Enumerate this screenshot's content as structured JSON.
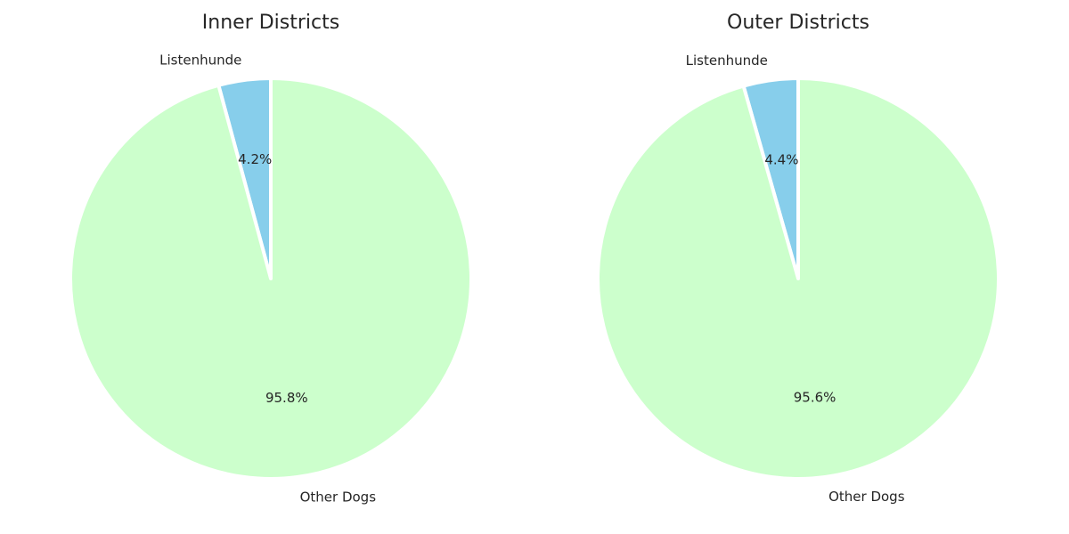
{
  "chart_data": [
    {
      "type": "pie",
      "title": "Inner Districts",
      "labels": [
        "Listenhunde",
        "Other Dogs"
      ],
      "values": [
        4.2,
        95.8
      ],
      "percent_labels": [
        "4.2%",
        "95.8%"
      ],
      "colors": [
        "#87ceeb",
        "#ccffcc"
      ],
      "start_angle_deg": 90,
      "direction": "counterclockwise",
      "legend": "none"
    },
    {
      "type": "pie",
      "title": "Outer Districts",
      "labels": [
        "Listenhunde",
        "Other Dogs"
      ],
      "values": [
        4.4,
        95.6
      ],
      "percent_labels": [
        "4.4%",
        "95.6%"
      ],
      "colors": [
        "#87ceeb",
        "#ccffcc"
      ],
      "start_angle_deg": 90,
      "direction": "counterclockwise",
      "legend": "none"
    }
  ]
}
